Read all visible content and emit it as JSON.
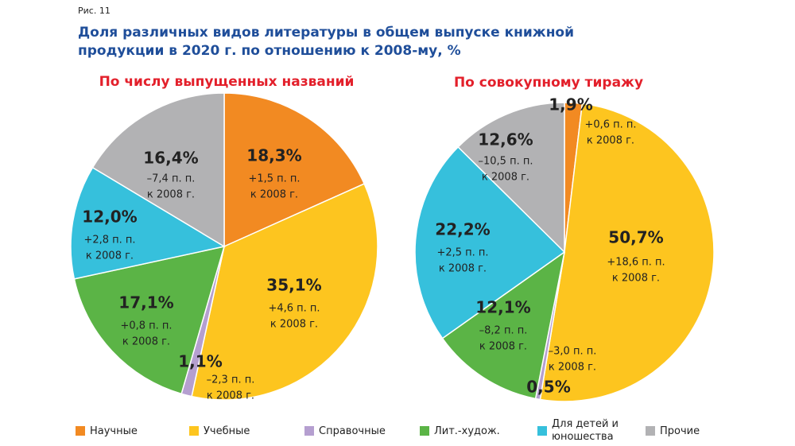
{
  "figure_label": "Рис. 11",
  "title": [
    "Доля различных видов литературы в общем выпуске книжной",
    "продукции в 2020 г. по отношению к 2008-му, %"
  ],
  "chart_data": [
    {
      "type": "pie",
      "title": "По числу выпущенных названий",
      "categories": [
        "Научные",
        "Учебные",
        "Справочные",
        "Лит.-худож.",
        "Для детей и юношества",
        "Прочие"
      ],
      "colors": [
        "#f28a22",
        "#fdc51f",
        "#b59fd0",
        "#5bb446",
        "#36c0dc",
        "#b2b2b4"
      ],
      "values": [
        18.3,
        35.1,
        1.1,
        17.1,
        12.0,
        16.4
      ],
      "value_labels": [
        "18,3%",
        "35,1%",
        "1,1%",
        "17,1%",
        "12,0%",
        "16,4%"
      ],
      "annotations": [
        [
          "+1,5 п. п.",
          "к 2008 г."
        ],
        [
          "+4,6 п. п.",
          "к 2008 г."
        ],
        [
          "–2,3 п. п.",
          "к 2008 г."
        ],
        [
          "+0,8 п. п.",
          "к 2008 г."
        ],
        [
          "+2,8 п. п.",
          "к 2008 г."
        ],
        [
          "–7,4 п. п.",
          "к 2008 г."
        ]
      ]
    },
    {
      "type": "pie",
      "title": "По совокупному тиражу",
      "categories": [
        "Научные",
        "Учебные",
        "Справочные",
        "Лит.-худож.",
        "Для детей и юношества",
        "Прочие"
      ],
      "colors": [
        "#f28a22",
        "#fdc51f",
        "#b59fd0",
        "#5bb446",
        "#36c0dc",
        "#b2b2b4"
      ],
      "values": [
        1.9,
        50.7,
        0.5,
        12.1,
        22.2,
        12.6
      ],
      "value_labels": [
        "1,9%",
        "50,7%",
        "0,5%",
        "12,1%",
        "22,2%",
        "12,6%"
      ],
      "annotations": [
        [
          "+0,6 п. п.",
          "к 2008 г."
        ],
        [
          "+18,6 п. п.",
          "к 2008 г."
        ],
        [
          "–3,0 п. п.",
          "к 2008 г."
        ],
        [
          "–8,2 п. п.",
          "к 2008 г."
        ],
        [
          "+2,5 п. п.",
          "к 2008 г."
        ],
        [
          "–10,5 п. п.",
          "к 2008 г."
        ]
      ]
    }
  ]
}
